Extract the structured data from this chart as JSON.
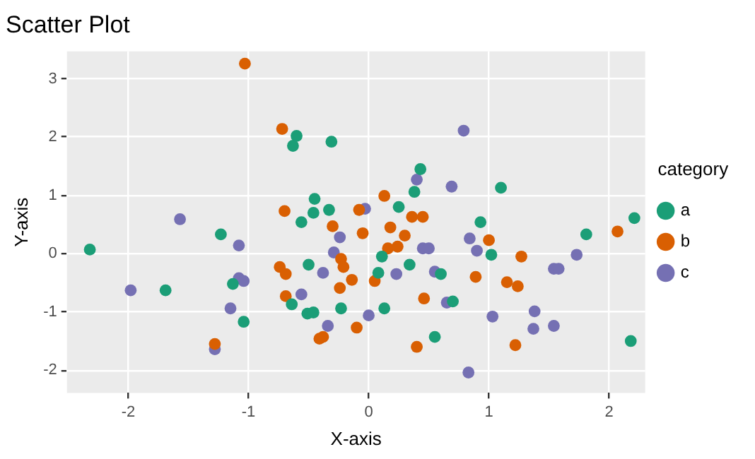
{
  "chart_data": {
    "type": "scatter",
    "title": "Scatter Plot",
    "xlabel": "X-axis",
    "ylabel": "Y-axis",
    "legend_title": "category",
    "legend": "right",
    "grid": true,
    "marker": "circle",
    "xlim": [
      -2.51,
      2.3
    ],
    "ylim": [
      -2.39,
      3.47
    ],
    "xticks": [
      -2,
      -1,
      0,
      1,
      2
    ],
    "yticks": [
      -2,
      -1,
      0,
      1,
      2,
      3
    ],
    "series": [
      {
        "name": "a",
        "color": "#1b9e77",
        "x": [
          -2.32,
          -1.69,
          -1.23,
          -1.13,
          -1.04,
          -0.5,
          -0.64,
          -0.51,
          -0.46,
          -0.23,
          -0.56,
          -0.46,
          -0.33,
          -0.6,
          -0.63,
          -0.31,
          -0.45,
          0.43,
          0.38,
          1.1,
          0.25,
          0.93,
          2.21,
          1.81,
          1.02,
          0.11,
          0.34,
          0.08,
          0.6,
          0.7,
          0.13,
          0.55,
          2.18
        ],
        "values": [
          0.07,
          -0.63,
          0.33,
          -0.52,
          -1.17,
          -0.19,
          -0.87,
          -1.03,
          -1.01,
          -0.94,
          0.54,
          0.7,
          0.75,
          2.02,
          1.85,
          1.92,
          0.94,
          1.45,
          1.06,
          1.13,
          0.8,
          0.54,
          0.61,
          0.33,
          -0.02,
          -0.05,
          -0.19,
          -0.33,
          -0.35,
          -0.82,
          -0.94,
          -1.43,
          -1.5
        ]
      },
      {
        "name": "b",
        "color": "#d95f02",
        "x": [
          -1.03,
          -0.72,
          -1.28,
          -0.74,
          -0.69,
          -0.69,
          -0.41,
          -0.38,
          -0.24,
          -0.14,
          -0.23,
          -0.21,
          -0.3,
          -0.7,
          -0.1,
          -0.08,
          0.13,
          0.36,
          0.45,
          2.07,
          -0.05,
          0.18,
          0.3,
          0.16,
          0.24,
          1.0,
          1.27,
          0.05,
          0.89,
          1.15,
          1.24,
          0.46,
          0.4,
          1.22
        ],
        "values": [
          3.26,
          2.14,
          -1.55,
          -0.23,
          -0.35,
          -0.73,
          -1.46,
          -1.43,
          -0.59,
          -0.45,
          -0.09,
          -0.23,
          0.47,
          0.73,
          -1.27,
          0.75,
          0.99,
          0.63,
          0.63,
          0.38,
          0.35,
          0.45,
          0.31,
          0.09,
          0.12,
          0.23,
          -0.05,
          -0.47,
          -0.4,
          -0.49,
          -0.56,
          -0.77,
          -1.6,
          -1.57
        ]
      },
      {
        "name": "c",
        "color": "#7570b3",
        "x": [
          -1.98,
          -1.57,
          -1.08,
          -1.08,
          -1.04,
          -1.15,
          -1.28,
          -0.38,
          -0.56,
          -0.34,
          -0.29,
          -0.24,
          0.79,
          0.4,
          0.69,
          -0.03,
          0.45,
          0.5,
          0.84,
          0.9,
          1.73,
          1.54,
          1.58,
          0.23,
          0.55,
          0.65,
          0.0,
          1.03,
          1.38,
          1.37,
          1.54,
          0.83
        ],
        "values": [
          -0.63,
          0.59,
          0.14,
          -0.42,
          -0.47,
          -0.94,
          -1.64,
          -0.33,
          -0.7,
          -1.24,
          0.02,
          0.28,
          2.11,
          1.27,
          1.15,
          0.77,
          0.09,
          0.09,
          0.26,
          0.05,
          -0.02,
          -0.26,
          -0.26,
          -0.35,
          -0.31,
          -0.84,
          -1.06,
          -1.08,
          -0.99,
          -1.29,
          -1.24,
          -2.04
        ]
      }
    ]
  }
}
